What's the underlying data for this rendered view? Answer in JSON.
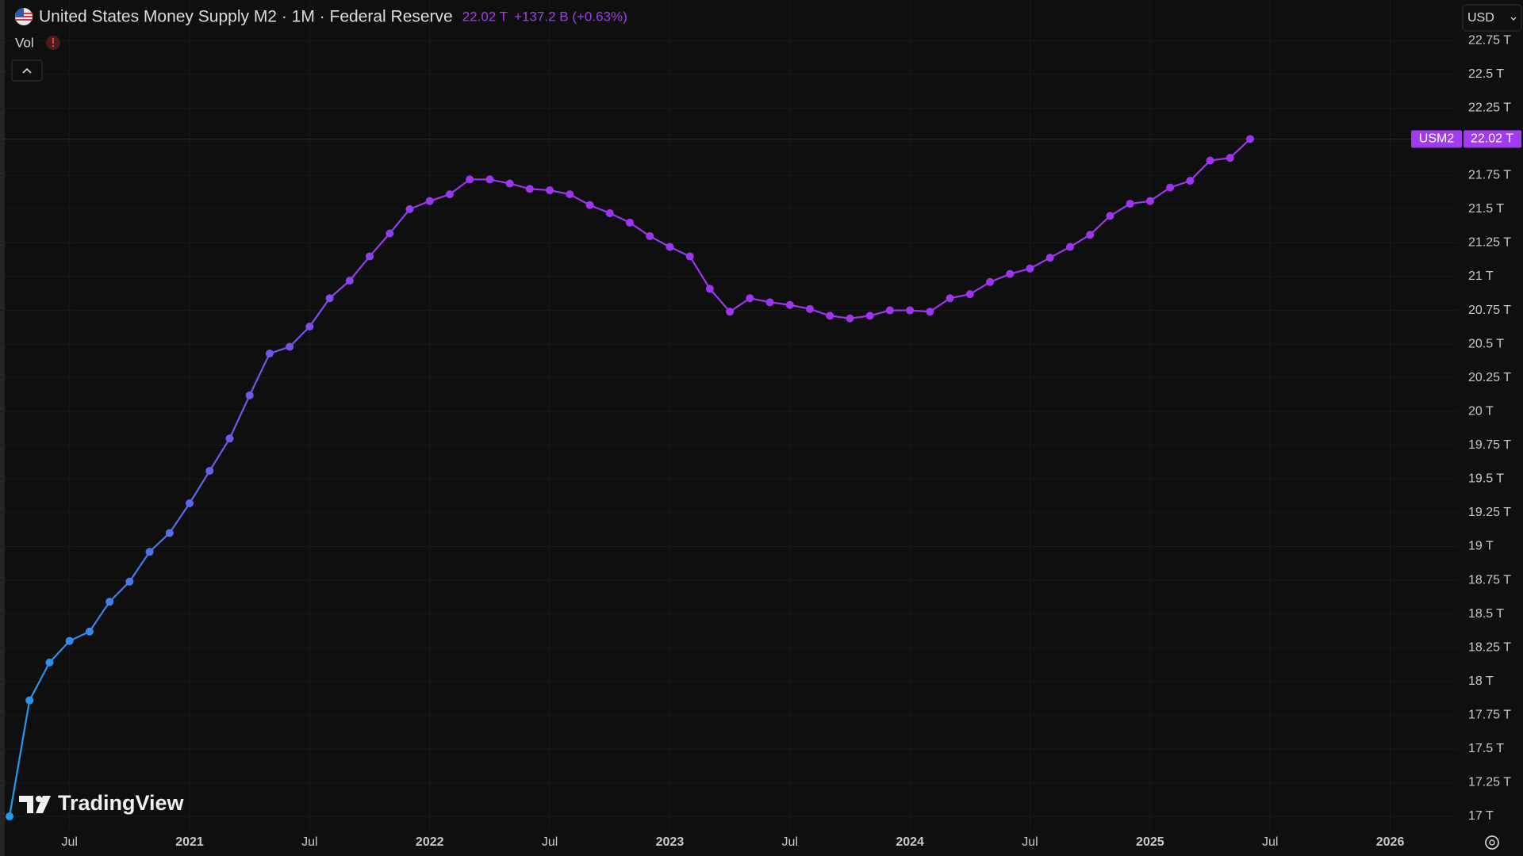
{
  "chart_data": {
    "type": "line",
    "title": "United States Money Supply M2 · 1M · Federal Reserve",
    "last_label": "22.02 T",
    "change": "+137.2 B (+0.63%)",
    "volume_label": "Vol",
    "currency": "USD",
    "watermark": "TradingView",
    "x": [
      "2020-04",
      "2020-05",
      "2020-06",
      "2020-07",
      "2020-08",
      "2020-09",
      "2020-10",
      "2020-11",
      "2020-12",
      "2021-01",
      "2021-02",
      "2021-03",
      "2021-04",
      "2021-05",
      "2021-06",
      "2021-07",
      "2021-08",
      "2021-09",
      "2021-10",
      "2021-11",
      "2021-12",
      "2022-01",
      "2022-02",
      "2022-03",
      "2022-04",
      "2022-05",
      "2022-06",
      "2022-07",
      "2022-08",
      "2022-09",
      "2022-10",
      "2022-11",
      "2022-12",
      "2023-01",
      "2023-02",
      "2023-03",
      "2023-04",
      "2023-05",
      "2023-06",
      "2023-07",
      "2023-08",
      "2023-09",
      "2023-10",
      "2023-11",
      "2023-12",
      "2024-01",
      "2024-02",
      "2024-03",
      "2024-04",
      "2024-05",
      "2024-06",
      "2024-07",
      "2024-08",
      "2024-09",
      "2024-10",
      "2024-11",
      "2024-12",
      "2025-01",
      "2025-02",
      "2025-03",
      "2025-04",
      "2025-05",
      "2025-06"
    ],
    "series": [
      {
        "name": "USM2",
        "colors": [
          "#1e9cf0",
          "#6a5ce8",
          "#9b35ee"
        ],
        "values": [
          17.0,
          17.86,
          18.14,
          18.3,
          18.37,
          18.59,
          18.74,
          18.96,
          19.1,
          19.32,
          19.56,
          19.8,
          20.12,
          20.43,
          20.48,
          20.63,
          20.84,
          20.97,
          21.15,
          21.32,
          21.5,
          21.56,
          21.61,
          21.72,
          21.72,
          21.69,
          21.65,
          21.64,
          21.61,
          21.53,
          21.47,
          21.4,
          21.3,
          21.22,
          21.15,
          20.91,
          20.74,
          20.84,
          20.81,
          20.79,
          20.76,
          20.71,
          20.69,
          20.71,
          20.75,
          20.75,
          20.74,
          20.84,
          20.87,
          20.96,
          21.02,
          21.06,
          21.14,
          21.22,
          21.31,
          21.45,
          21.54,
          21.56,
          21.66,
          21.71,
          21.86,
          21.88,
          22.02
        ]
      }
    ],
    "xlim": [
      "2020-04",
      "2026-03"
    ],
    "xticks": [
      {
        "value": "2020-07",
        "label": "Jul"
      },
      {
        "value": "2021-01",
        "label": "2021"
      },
      {
        "value": "2021-07",
        "label": "Jul"
      },
      {
        "value": "2022-01",
        "label": "2022"
      },
      {
        "value": "2022-07",
        "label": "Jul"
      },
      {
        "value": "2023-01",
        "label": "2023"
      },
      {
        "value": "2023-07",
        "label": "Jul"
      },
      {
        "value": "2024-01",
        "label": "2024"
      },
      {
        "value": "2024-07",
        "label": "Jul"
      },
      {
        "value": "2025-01",
        "label": "2025"
      },
      {
        "value": "2025-07",
        "label": "Jul"
      },
      {
        "value": "2026-01",
        "label": "2026"
      }
    ],
    "ylim": [
      16.9,
      23.05
    ],
    "yticks": [
      {
        "value": 17,
        "label": "17 T"
      },
      {
        "value": 17.25,
        "label": "17.25 T"
      },
      {
        "value": 17.5,
        "label": "17.5 T"
      },
      {
        "value": 17.75,
        "label": "17.75 T"
      },
      {
        "value": 18,
        "label": "18 T"
      },
      {
        "value": 18.25,
        "label": "18.25 T"
      },
      {
        "value": 18.5,
        "label": "18.5 T"
      },
      {
        "value": 18.75,
        "label": "18.75 T"
      },
      {
        "value": 19,
        "label": "19 T"
      },
      {
        "value": 19.25,
        "label": "19.25 T"
      },
      {
        "value": 19.5,
        "label": "19.5 T"
      },
      {
        "value": 19.75,
        "label": "19.75 T"
      },
      {
        "value": 20,
        "label": "20 T"
      },
      {
        "value": 20.25,
        "label": "20.25 T"
      },
      {
        "value": 20.5,
        "label": "20.5 T"
      },
      {
        "value": 20.75,
        "label": "20.75 T"
      },
      {
        "value": 21,
        "label": "21 T"
      },
      {
        "value": 21.25,
        "label": "21.25 T"
      },
      {
        "value": 21.5,
        "label": "21.5 T"
      },
      {
        "value": 21.75,
        "label": "21.75 T"
      },
      {
        "value": 22,
        "label": "22 T"
      },
      {
        "value": 22.25,
        "label": "22.25 T"
      },
      {
        "value": 22.5,
        "label": "22.5 T"
      },
      {
        "value": 22.75,
        "label": "22.75 T"
      }
    ],
    "grid": true,
    "accent_color": "#a13bf0"
  }
}
